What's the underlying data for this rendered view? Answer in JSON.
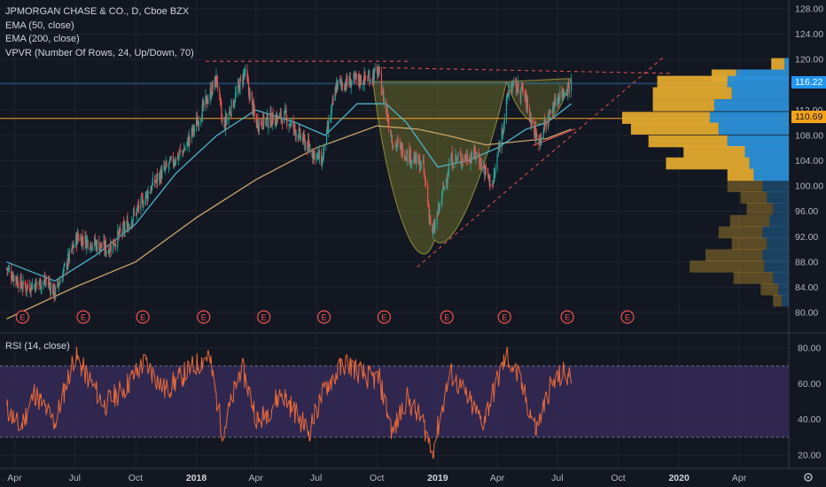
{
  "header": {
    "symbol_line": "JPMORGAN CHASE & CO., D, Cboe BZX",
    "indicators": [
      "EMA (50, close)",
      "EMA (200, close)",
      "VPVR (Number Of Rows, 24, Up/Down, 70)"
    ]
  },
  "rsi_panel": {
    "label": "RSI (14, close)"
  },
  "price_tags": {
    "last": "116.22",
    "poc": "110.69"
  },
  "colors": {
    "background": "#131722",
    "grid": "#1f2330",
    "candle_up": "#26a69a",
    "candle_down": "#ef5350",
    "ema50": "#4fb3c9",
    "ema200": "#c9a56a",
    "poc_line": "#f7a21b",
    "last_line": "#2196f3",
    "vol_up": "#2a8fd6",
    "vol_down": "#e0a82e",
    "rsi_line": "#e8693a",
    "rsi_band": "#352a57",
    "pattern_fill": "#6a6a2a"
  },
  "chart_data": {
    "type": "candlestick",
    "title": "JPMORGAN CHASE & CO., D, Cboe BZX",
    "x_tick_labels": [
      "Apr",
      "Jul",
      "Oct",
      "2018",
      "Apr",
      "Jul",
      "Oct",
      "2019",
      "Apr",
      "Jul",
      "Oct",
      "2020",
      "Apr"
    ],
    "y_ticks": [
      80,
      84,
      88,
      92,
      96,
      100,
      104,
      108,
      112,
      116,
      120,
      124,
      128
    ],
    "y_tick_labels": [
      "80.00",
      "84.00",
      "88.00",
      "92.00",
      "96.00",
      "100.00",
      "104.00",
      "108.00",
      "112.00",
      "116.00",
      "120.00",
      "124.00",
      "128.00"
    ],
    "ylim": [
      79,
      129
    ],
    "price_path": [
      [
        "2017-03-20",
        87
      ],
      [
        "2017-04-15",
        84
      ],
      [
        "2017-05-20",
        85
      ],
      [
        "2017-06-01",
        83
      ],
      [
        "2017-07-05",
        92
      ],
      [
        "2017-08-20",
        90
      ],
      [
        "2017-09-20",
        94
      ],
      [
        "2017-11-01",
        101
      ],
      [
        "2017-12-15",
        106
      ],
      [
        "2018-02-01",
        117
      ],
      [
        "2018-02-10",
        109
      ],
      [
        "2018-03-15",
        118
      ],
      [
        "2018-04-01",
        110
      ],
      [
        "2018-05-15",
        111
      ],
      [
        "2018-06-20",
        106
      ],
      [
        "2018-07-10",
        104
      ],
      [
        "2018-08-01",
        116
      ],
      [
        "2018-09-15",
        117
      ],
      [
        "2018-10-03",
        118
      ],
      [
        "2018-10-25",
        107
      ],
      [
        "2018-12-10",
        103
      ],
      [
        "2018-12-24",
        92
      ],
      [
        "2019-01-20",
        104
      ],
      [
        "2019-03-01",
        105
      ],
      [
        "2019-03-25",
        100
      ],
      [
        "2019-04-20",
        116
      ],
      [
        "2019-05-10",
        115
      ],
      [
        "2019-06-01",
        107
      ],
      [
        "2019-07-01",
        114
      ],
      [
        "2019-07-22",
        116.22
      ]
    ],
    "ema50_path": [
      [
        "2017-03-20",
        88
      ],
      [
        "2017-06-01",
        85
      ],
      [
        "2017-08-01",
        89
      ],
      [
        "2017-10-01",
        94
      ],
      [
        "2017-12-01",
        102
      ],
      [
        "2018-02-01",
        108
      ],
      [
        "2018-04-01",
        112
      ],
      [
        "2018-06-01",
        110
      ],
      [
        "2018-07-15",
        108
      ],
      [
        "2018-09-01",
        113
      ],
      [
        "2018-10-15",
        113
      ],
      [
        "2018-11-15",
        110
      ],
      [
        "2019-01-01",
        103
      ],
      [
        "2019-02-15",
        104
      ],
      [
        "2019-04-01",
        106
      ],
      [
        "2019-05-15",
        109
      ],
      [
        "2019-06-15",
        110
      ],
      [
        "2019-07-22",
        113
      ]
    ],
    "ema200_path": [
      [
        "2017-03-20",
        79
      ],
      [
        "2017-07-01",
        84
      ],
      [
        "2017-10-01",
        88
      ],
      [
        "2018-01-01",
        95
      ],
      [
        "2018-04-01",
        101
      ],
      [
        "2018-07-01",
        106
      ],
      [
        "2018-10-01",
        109.5
      ],
      [
        "2018-12-01",
        109
      ],
      [
        "2019-01-15",
        108
      ],
      [
        "2019-03-15",
        106.5
      ],
      [
        "2019-06-15",
        107.5
      ],
      [
        "2019-07-22",
        109
      ]
    ],
    "horizontal_levels": {
      "poc": 110.69,
      "last": 116.22
    },
    "volume_profile_rows": [
      {
        "price": 119.2,
        "up": 5,
        "down": 15
      },
      {
        "price": 117.4,
        "up": 60,
        "down": 28
      },
      {
        "price": 116.4,
        "up": 70,
        "down": 80
      },
      {
        "price": 114.6,
        "up": 65,
        "down": 90
      },
      {
        "price": 112.7,
        "up": 85,
        "down": 70
      },
      {
        "price": 110.7,
        "up": 90,
        "down": 100
      },
      {
        "price": 109.0,
        "up": 80,
        "down": 100
      },
      {
        "price": 107.0,
        "up": 70,
        "down": 90
      },
      {
        "price": 105.3,
        "up": 50,
        "down": 70
      },
      {
        "price": 103.5,
        "up": 45,
        "down": 95
      },
      {
        "price": 101.7,
        "up": 40,
        "down": 30
      },
      {
        "price": 99.9,
        "up": 30,
        "down": 40
      },
      {
        "price": 98.1,
        "up": 25,
        "down": 30
      },
      {
        "price": 96.3,
        "up": 18,
        "down": 30
      },
      {
        "price": 94.4,
        "up": 22,
        "down": 45
      },
      {
        "price": 92.6,
        "up": 30,
        "down": 50
      },
      {
        "price": 90.8,
        "up": 25,
        "down": 40
      },
      {
        "price": 89.0,
        "up": 30,
        "down": 65
      },
      {
        "price": 87.2,
        "up": 28,
        "down": 85
      },
      {
        "price": 85.4,
        "up": 18,
        "down": 45
      },
      {
        "price": 83.6,
        "up": 12,
        "down": 20
      },
      {
        "price": 81.8,
        "up": 8,
        "down": 10
      }
    ],
    "earnings_events": [
      "2017-04-13",
      "2017-07-14",
      "2017-10-12",
      "2018-01-12",
      "2018-04-13",
      "2018-07-13",
      "2018-10-12",
      "2019-01-15",
      "2019-04-12",
      "2019-07-16",
      "2019-10-15"
    ],
    "rsi": {
      "ylim": [
        15,
        85
      ],
      "y_ticks": [
        20,
        40,
        60,
        80
      ],
      "y_tick_labels": [
        "20.00",
        "40.00",
        "60.00",
        "80.00"
      ],
      "band": [
        30,
        70
      ],
      "path": [
        [
          "2017-03-20",
          46
        ],
        [
          "2017-04-10",
          35
        ],
        [
          "2017-05-01",
          55
        ],
        [
          "2017-06-01",
          38
        ],
        [
          "2017-07-01",
          76
        ],
        [
          "2017-08-15",
          48
        ],
        [
          "2017-09-15",
          58
        ],
        [
          "2017-10-15",
          72
        ],
        [
          "2017-11-15",
          56
        ],
        [
          "2017-12-15",
          66
        ],
        [
          "2018-01-20",
          76
        ],
        [
          "2018-02-10",
          32
        ],
        [
          "2018-03-10",
          70
        ],
        [
          "2018-04-05",
          38
        ],
        [
          "2018-05-10",
          55
        ],
        [
          "2018-06-20",
          33
        ],
        [
          "2018-07-15",
          58
        ],
        [
          "2018-08-15",
          72
        ],
        [
          "2018-09-15",
          64
        ],
        [
          "2018-10-05",
          62
        ],
        [
          "2018-10-25",
          32
        ],
        [
          "2018-11-15",
          52
        ],
        [
          "2018-12-10",
          38
        ],
        [
          "2018-12-24",
          22
        ],
        [
          "2019-01-20",
          66
        ],
        [
          "2019-02-15",
          52
        ],
        [
          "2019-03-10",
          38
        ],
        [
          "2019-04-15",
          76
        ],
        [
          "2019-05-05",
          62
        ],
        [
          "2019-05-30",
          34
        ],
        [
          "2019-06-20",
          58
        ],
        [
          "2019-07-10",
          66
        ],
        [
          "2019-07-22",
          62
        ]
      ]
    },
    "annotations": [
      "resistance near 119.7 (dashed, red)",
      "rising support trendline (dashed, red)",
      "cup-and-handle shaded region"
    ]
  }
}
